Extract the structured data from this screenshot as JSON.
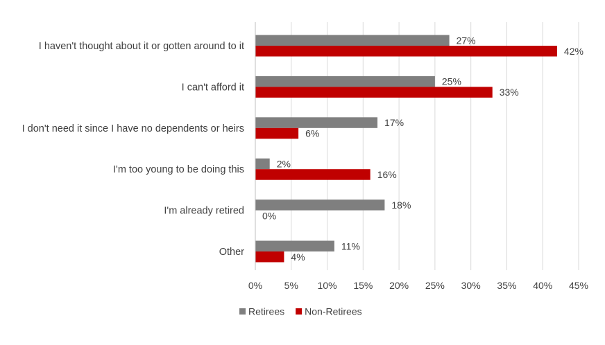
{
  "chart_data": {
    "type": "bar",
    "orientation": "horizontal",
    "title": "",
    "xlabel": "",
    "ylabel": "",
    "categories": [
      "I haven't thought about it or gotten around to it",
      "I can't afford it",
      "I don't need it since I have no dependents or heirs",
      "I'm too young to be doing this",
      "I'm already retired",
      "Other"
    ],
    "series": [
      {
        "name": "Retirees",
        "color": "#7f7f7f",
        "values": [
          27,
          25,
          17,
          2,
          18,
          11
        ],
        "labels": [
          "27%",
          "25%",
          "17%",
          "2%",
          "18%",
          "11%"
        ]
      },
      {
        "name": "Non-Retirees",
        "color": "#c00000",
        "values": [
          42,
          33,
          6,
          16,
          0,
          4
        ],
        "labels": [
          "42%",
          "33%",
          "6%",
          "16%",
          "0%",
          "4%"
        ]
      }
    ],
    "xlim": [
      0,
      45
    ],
    "xticks": [
      0,
      5,
      10,
      15,
      20,
      25,
      30,
      35,
      40,
      45
    ],
    "xtick_labels": [
      "0%",
      "5%",
      "10%",
      "15%",
      "20%",
      "25%",
      "30%",
      "35%",
      "40%",
      "45%"
    ],
    "grid": true,
    "legend_position": "bottom"
  }
}
